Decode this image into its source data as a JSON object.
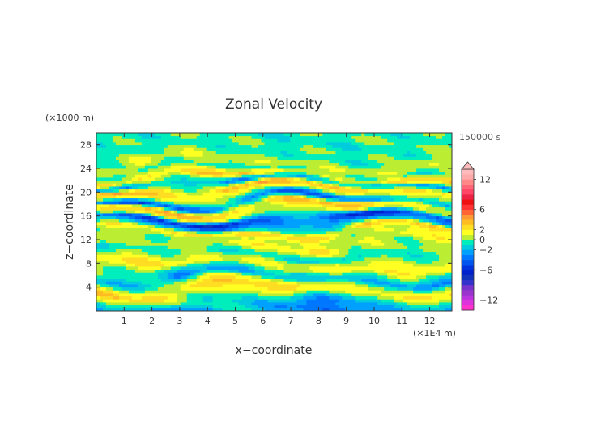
{
  "chart_data": {
    "type": "heatmap",
    "title": "Zonal Velocity",
    "xlabel": "x−coordinate",
    "ylabel": "z−coordinate",
    "x_unit_label": "(×1E4 m)",
    "y_unit_label": "(×1000 m)",
    "time_label": "150000 s",
    "xlim": [
      0,
      12.8
    ],
    "ylim": [
      0,
      30
    ],
    "x_ticks": [
      1,
      2,
      3,
      4,
      5,
      6,
      7,
      8,
      9,
      10,
      11,
      12
    ],
    "y_ticks": [
      4,
      8,
      12,
      16,
      20,
      24,
      28
    ],
    "z_bands": [
      {
        "z": 0.6,
        "v": -3
      },
      {
        "z": 1.6,
        "v": -1.5
      },
      {
        "z": 2.6,
        "v": 1
      },
      {
        "z": 3.6,
        "v": 3
      },
      {
        "z": 4.6,
        "v": 1
      },
      {
        "z": 5.6,
        "v": -3
      },
      {
        "z": 6.6,
        "v": -1
      },
      {
        "z": 7.6,
        "v": 2
      },
      {
        "z": 8.6,
        "v": 1
      },
      {
        "z": 9.6,
        "v": -1
      },
      {
        "z": 10.6,
        "v": 0.5
      },
      {
        "z": 11.6,
        "v": 1.5
      },
      {
        "z": 12.6,
        "v": 0.5
      },
      {
        "z": 13.6,
        "v": 3
      },
      {
        "z": 14.6,
        "v": -3
      },
      {
        "z": 15.6,
        "v": -6
      },
      {
        "z": 16.6,
        "v": 1.5
      },
      {
        "z": 17.6,
        "v": 3
      },
      {
        "z": 18.6,
        "v": -4
      },
      {
        "z": 19.6,
        "v": 1
      },
      {
        "z": 20.6,
        "v": 4
      },
      {
        "z": 21.6,
        "v": -3
      },
      {
        "z": 22.6,
        "v": 3
      },
      {
        "z": 23.6,
        "v": -0.5
      },
      {
        "z": 24.6,
        "v": 1
      },
      {
        "z": 25.6,
        "v": 0.3
      },
      {
        "z": 26.6,
        "v": -0.5
      },
      {
        "z": 27.6,
        "v": -0.3
      },
      {
        "z": 28.6,
        "v": -0.6
      },
      {
        "z": 29.6,
        "v": -0.5
      }
    ],
    "colorbar": {
      "levels": [
        -14,
        -13,
        -12,
        -11,
        -10,
        -9,
        -8,
        -7,
        -6,
        -5,
        -4,
        -3,
        -2,
        -1,
        0,
        1,
        2,
        3,
        4,
        5,
        6,
        7,
        8,
        9,
        10,
        11,
        12,
        13,
        14
      ],
      "colors": [
        "#ff33cc",
        "#dd33dd",
        "#bb33dd",
        "#9933cc",
        "#7733cc",
        "#3333cc",
        "#1133bb",
        "#0022cc",
        "#0033dd",
        "#0055ee",
        "#0077ff",
        "#00a0ff",
        "#00ccdd",
        "#00eebb",
        "#bbee33",
        "#ffff22",
        "#ffdd22",
        "#ffbb22",
        "#ff9933",
        "#ff6633",
        "#ff3333",
        "#ee1111",
        "#ee2244",
        "#ff4466",
        "#ff6677",
        "#ff8888",
        "#ffaaaa",
        "#ffbbbb"
      ],
      "tick_values": [
        12,
        6,
        2,
        0,
        -2,
        -6,
        -12
      ],
      "tick_labels": [
        "12",
        "6",
        "2",
        "0",
        "−2",
        "−6",
        "−12"
      ],
      "extend": "max"
    }
  }
}
